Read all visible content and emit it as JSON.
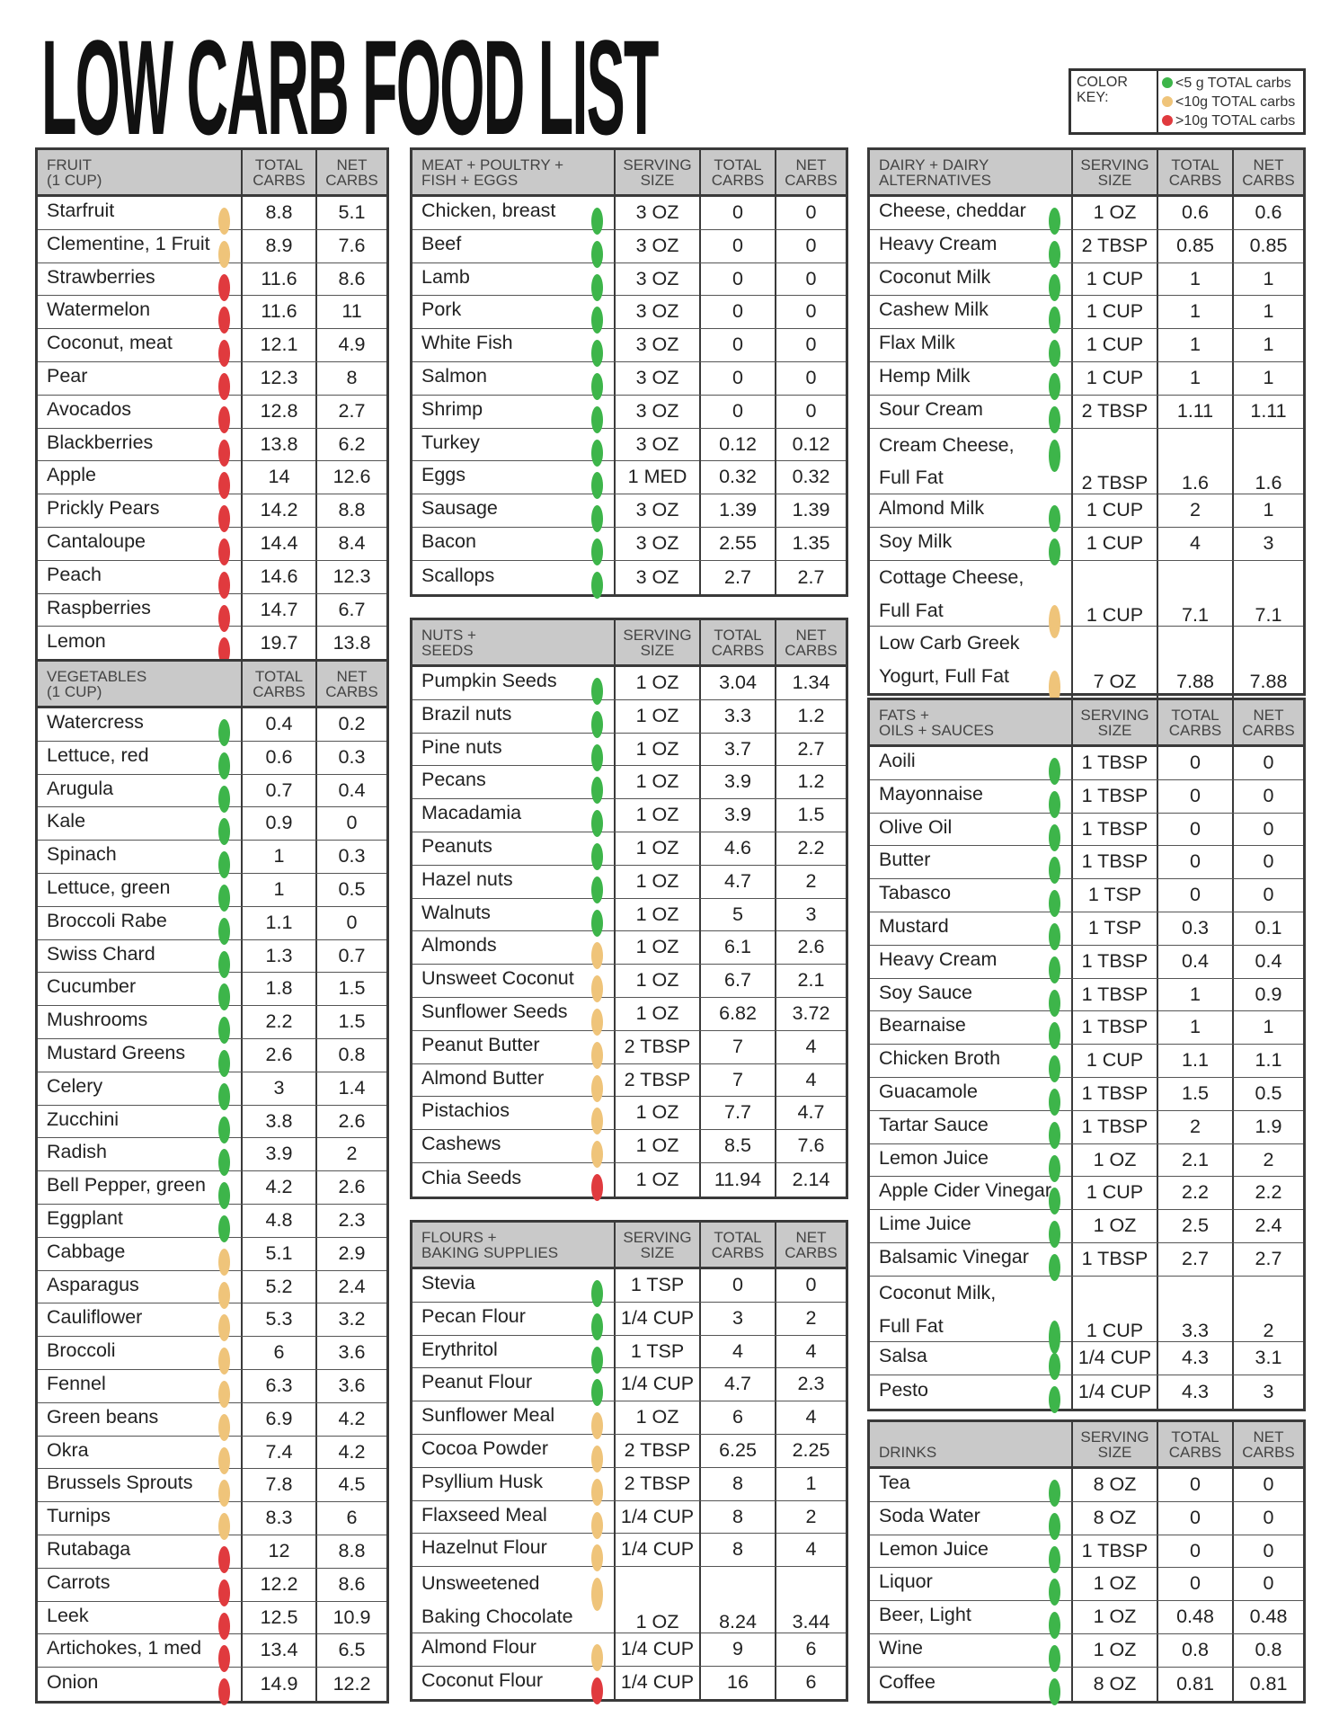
{
  "title": "LOW CARB FOOD LIST",
  "color_key": {
    "label": "COLOR KEY:",
    "items": [
      {
        "text": "<5 g TOTAL carbs",
        "color": "#3db54a"
      },
      {
        "text": "<10g TOTAL carbs",
        "color": "#efc47a"
      },
      {
        "text": ">10g TOTAL carbs",
        "color": "#e03a3e"
      }
    ]
  },
  "dot_colors": {
    "g": "#3db54a",
    "y": "#efc47a",
    "r": "#e03a3e"
  },
  "sections": [
    {
      "id": "fruit",
      "title": [
        "FRUIT",
        "(1 CUP)"
      ],
      "columns": [
        "TOTAL CARBS",
        "NET CARBS"
      ],
      "items": [
        [
          "Starfruit",
          "y",
          "8.8",
          "5.1"
        ],
        [
          "Clementine, 1 Fruit",
          "y",
          "8.9",
          "7.6"
        ],
        [
          "Strawberries",
          "r",
          "11.6",
          "8.6"
        ],
        [
          "Watermelon",
          "r",
          "11.6",
          "11"
        ],
        [
          "Coconut, meat",
          "r",
          "12.1",
          "4.9"
        ],
        [
          "Pear",
          "r",
          "12.3",
          "8"
        ],
        [
          "Avocados",
          "r",
          "12.8",
          "2.7"
        ],
        [
          "Blackberries",
          "r",
          "13.8",
          "6.2"
        ],
        [
          "Apple",
          "r",
          "14",
          "12.6"
        ],
        [
          "Prickly Pears",
          "r",
          "14.2",
          "8.8"
        ],
        [
          "Cantaloupe",
          "r",
          "14.4",
          "8.4"
        ],
        [
          "Peach",
          "r",
          "14.6",
          "12.3"
        ],
        [
          "Raspberries",
          "r",
          "14.7",
          "6.7"
        ],
        [
          "Lemon",
          "r",
          "19.7",
          "13.8"
        ]
      ]
    },
    {
      "id": "vegetables",
      "title": [
        "VEGETABLES",
        "(1 CUP)"
      ],
      "columns": [
        "TOTAL CARBS",
        "NET CARBS"
      ],
      "items": [
        [
          "Watercress",
          "g",
          "0.4",
          "0.2"
        ],
        [
          "Lettuce, red",
          "g",
          "0.6",
          "0.3"
        ],
        [
          "Arugula",
          "g",
          "0.7",
          "0.4"
        ],
        [
          "Kale",
          "g",
          "0.9",
          "0"
        ],
        [
          "Spinach",
          "g",
          "1",
          "0.3"
        ],
        [
          "Lettuce, green",
          "g",
          "1",
          "0.5"
        ],
        [
          "Broccoli Rabe",
          "g",
          "1.1",
          "0"
        ],
        [
          "Swiss Chard",
          "g",
          "1.3",
          "0.7"
        ],
        [
          "Cucumber",
          "g",
          "1.8",
          "1.5"
        ],
        [
          "Mushrooms",
          "g",
          "2.2",
          "1.5"
        ],
        [
          "Mustard Greens",
          "g",
          "2.6",
          "0.8"
        ],
        [
          "Celery",
          "g",
          "3",
          "1.4"
        ],
        [
          "Zucchini",
          "g",
          "3.8",
          "2.6"
        ],
        [
          "Radish",
          "g",
          "3.9",
          "2"
        ],
        [
          "Bell Pepper, green",
          "g",
          "4.2",
          "2.6"
        ],
        [
          "Eggplant",
          "g",
          "4.8",
          "2.3"
        ],
        [
          "Cabbage",
          "y",
          "5.1",
          "2.9"
        ],
        [
          "Asparagus",
          "y",
          "5.2",
          "2.4"
        ],
        [
          "Cauliflower",
          "y",
          "5.3",
          "3.2"
        ],
        [
          "Broccoli",
          "y",
          "6",
          "3.6"
        ],
        [
          "Fennel",
          "y",
          "6.3",
          "3.6"
        ],
        [
          "Green beans",
          "y",
          "6.9",
          "4.2"
        ],
        [
          "Okra",
          "y",
          "7.4",
          "4.2"
        ],
        [
          "Brussels Sprouts",
          "y",
          "7.8",
          "4.5"
        ],
        [
          "Turnips",
          "y",
          "8.3",
          "6"
        ],
        [
          "Rutabaga",
          "r",
          "12",
          "8.8"
        ],
        [
          "Carrots",
          "r",
          "12.2",
          "8.6"
        ],
        [
          "Leek",
          "r",
          "12.5",
          "10.9"
        ],
        [
          "Artichokes, 1 med",
          "r",
          "13.4",
          "6.5"
        ],
        [
          "Onion",
          "r",
          "14.9",
          "12.2"
        ]
      ]
    },
    {
      "id": "meat",
      "title": [
        "MEAT + POULTRY +",
        "FISH + EGGS"
      ],
      "columns": [
        "SERVING SIZE",
        "TOTAL CARBS",
        "NET CARBS"
      ],
      "items": [
        [
          "Chicken, breast",
          "g",
          "3 OZ",
          "0",
          "0"
        ],
        [
          "Beef",
          "g",
          "3 OZ",
          "0",
          "0"
        ],
        [
          "Lamb",
          "g",
          "3 OZ",
          "0",
          "0"
        ],
        [
          "Pork",
          "g",
          "3 OZ",
          "0",
          "0"
        ],
        [
          "White Fish",
          "g",
          "3 OZ",
          "0",
          "0"
        ],
        [
          "Salmon",
          "g",
          "3 OZ",
          "0",
          "0"
        ],
        [
          "Shrimp",
          "g",
          "3 OZ",
          "0",
          "0"
        ],
        [
          "Turkey",
          "g",
          "3 OZ",
          "0.12",
          "0.12"
        ],
        [
          "Eggs",
          "g",
          "1 MED",
          "0.32",
          "0.32"
        ],
        [
          "Sausage",
          "g",
          "3 OZ",
          "1.39",
          "1.39"
        ],
        [
          "Bacon",
          "g",
          "3 OZ",
          "2.55",
          "1.35"
        ],
        [
          "Scallops",
          "g",
          "3 OZ",
          "2.7",
          "2.7"
        ]
      ]
    },
    {
      "id": "nuts",
      "title": [
        "NUTS +",
        "SEEDS"
      ],
      "columns": [
        "SERVING SIZE",
        "TOTAL CARBS",
        "NET CARBS"
      ],
      "items": [
        [
          "Pumpkin Seeds",
          "g",
          "1 OZ",
          "3.04",
          "1.34"
        ],
        [
          "Brazil nuts",
          "g",
          "1 OZ",
          "3.3",
          "1.2"
        ],
        [
          "Pine nuts",
          "g",
          "1 OZ",
          "3.7",
          "2.7"
        ],
        [
          "Pecans",
          "g",
          "1 OZ",
          "3.9",
          "1.2"
        ],
        [
          "Macadamia",
          "g",
          "1 OZ",
          "3.9",
          "1.5"
        ],
        [
          "Peanuts",
          "g",
          "1 OZ",
          "4.6",
          "2.2"
        ],
        [
          "Hazel nuts",
          "g",
          "1 OZ",
          "4.7",
          "2"
        ],
        [
          "Walnuts",
          "g",
          "1 OZ",
          "5",
          "3"
        ],
        [
          "Almonds",
          "y",
          "1 OZ",
          "6.1",
          "2.6"
        ],
        [
          "Unsweet Coconut",
          "y",
          "1 OZ",
          "6.7",
          "2.1"
        ],
        [
          "Sunflower Seeds",
          "y",
          "1 OZ",
          "6.82",
          "3.72"
        ],
        [
          "Peanut Butter",
          "y",
          "2 TBSP",
          "7",
          "4"
        ],
        [
          "Almond Butter",
          "y",
          "2 TBSP",
          "7",
          "4"
        ],
        [
          "Pistachios",
          "y",
          "1 OZ",
          "7.7",
          "4.7"
        ],
        [
          "Cashews",
          "y",
          "1 OZ",
          "8.5",
          "7.6"
        ],
        [
          "Chia Seeds",
          "r",
          "1 OZ",
          "11.94",
          "2.14"
        ]
      ]
    },
    {
      "id": "flours",
      "title": [
        "FLOURS +",
        "BAKING SUPPLIES"
      ],
      "columns": [
        "SERVING SIZE",
        "TOTAL CARBS",
        "NET CARBS"
      ],
      "items": [
        [
          "Stevia",
          "g",
          "1 TSP",
          "0",
          "0"
        ],
        [
          "Pecan Flour",
          "g",
          "1/4 CUP",
          "3",
          "2"
        ],
        [
          "Erythritol",
          "g",
          "1 TSP",
          "4",
          "4"
        ],
        [
          "Peanut Flour",
          "g",
          "1/4 CUP",
          "4.7",
          "2.3"
        ],
        [
          "Sunflower Meal",
          "y",
          "1 OZ",
          "6",
          "4"
        ],
        [
          "Cocoa Powder",
          "y",
          "2 TBSP",
          "6.25",
          "2.25"
        ],
        [
          "Psyllium Husk",
          "y",
          "2 TBSP",
          "8",
          "1"
        ],
        [
          "Flaxseed Meal",
          "y",
          "1/4 CUP",
          "8",
          "2"
        ],
        [
          "Hazelnut Flour",
          "y",
          "1/4 CUP",
          "8",
          "4"
        ],
        [
          [
            "Unsweetened",
            "Baking Chocolate"
          ],
          "y",
          "1 OZ",
          "8.24",
          "3.44"
        ],
        [
          "Almond Flour",
          "y",
          "1/4 CUP",
          "9",
          "6"
        ],
        [
          "Coconut Flour",
          "r",
          "1/4 CUP",
          "16",
          "6"
        ]
      ]
    },
    {
      "id": "dairy",
      "title": [
        "DAIRY + DAIRY",
        "ALTERNATIVES"
      ],
      "columns": [
        "SERVING SIZE",
        "TOTAL CARBS",
        "NET CARBS"
      ],
      "items": [
        [
          "Cheese, cheddar",
          "g",
          "1 OZ",
          "0.6",
          "0.6"
        ],
        [
          "Heavy Cream",
          "g",
          "2 TBSP",
          "0.85",
          "0.85"
        ],
        [
          "Coconut Milk",
          "g",
          "1 CUP",
          "1",
          "1"
        ],
        [
          "Cashew Milk",
          "g",
          "1 CUP",
          "1",
          "1"
        ],
        [
          "Flax Milk",
          "g",
          "1 CUP",
          "1",
          "1"
        ],
        [
          "Hemp Milk",
          "g",
          "1 CUP",
          "1",
          "1"
        ],
        [
          "Sour Cream",
          "g",
          "2 TBSP",
          "1.11",
          "1.11"
        ],
        [
          [
            "Cream Cheese,",
            "Full Fat"
          ],
          "g",
          "2 TBSP",
          "1.6",
          "1.6"
        ],
        [
          "Almond Milk",
          "g",
          "1 CUP",
          "2",
          "1"
        ],
        [
          "Soy Milk",
          "g",
          "1 CUP",
          "4",
          "3"
        ],
        [
          [
            "Cottage Cheese,",
            "Full Fat"
          ],
          "y2",
          "1 CUP",
          "7.1",
          "7.1"
        ],
        [
          [
            "Low Carb Greek",
            "Yogurt, Full Fat"
          ],
          "y2",
          "7 OZ",
          "7.88",
          "7.88"
        ]
      ]
    },
    {
      "id": "fats",
      "title": [
        "FATS +",
        "OILS + SAUCES"
      ],
      "columns": [
        "SERVING SIZE",
        "TOTAL CARBS",
        "NET CARBS"
      ],
      "items": [
        [
          "Aoili",
          "g",
          "1 TBSP",
          "0",
          "0"
        ],
        [
          "Mayonnaise",
          "g",
          "1 TBSP",
          "0",
          "0"
        ],
        [
          "Olive Oil",
          "g",
          "1 TBSP",
          "0",
          "0"
        ],
        [
          "Butter",
          "g",
          "1 TBSP",
          "0",
          "0"
        ],
        [
          "Tabasco",
          "g",
          "1 TSP",
          "0",
          "0"
        ],
        [
          "Mustard",
          "g",
          "1 TSP",
          "0.3",
          "0.1"
        ],
        [
          "Heavy Cream",
          "g",
          "1 TBSP",
          "0.4",
          "0.4"
        ],
        [
          "Soy Sauce",
          "g",
          "1 TBSP",
          "1",
          "0.9"
        ],
        [
          "Bearnaise",
          "g",
          "1 TBSP",
          "1",
          "1"
        ],
        [
          "Chicken Broth",
          "g",
          "1 CUP",
          "1.1",
          "1.1"
        ],
        [
          "Guacamole",
          "g",
          "1 TBSP",
          "1.5",
          "0.5"
        ],
        [
          "Tartar Sauce",
          "g",
          "1 TBSP",
          "2",
          "1.9"
        ],
        [
          "Lemon Juice",
          "g",
          "1 OZ",
          "2.1",
          "2"
        ],
        [
          "Apple Cider Vinegar",
          "g",
          "1 CUP",
          "2.2",
          "2.2"
        ],
        [
          "Lime Juice",
          "g",
          "1 OZ",
          "2.5",
          "2.4"
        ],
        [
          "Balsamic Vinegar",
          "g",
          "1 TBSP",
          "2.7",
          "2.7"
        ],
        [
          [
            "Coconut Milk,",
            "Full Fat"
          ],
          "g2",
          "1 CUP",
          "3.3",
          "2"
        ],
        [
          "Salsa",
          "g",
          "1/4 CUP",
          "4.3",
          "3.1"
        ],
        [
          "Pesto",
          "g",
          "1/4 CUP",
          "4.3",
          "3"
        ]
      ]
    },
    {
      "id": "drinks",
      "title": [
        "",
        "DRINKS"
      ],
      "columns": [
        "SERVING SIZE",
        "TOTAL CARBS",
        "NET CARBS"
      ],
      "items": [
        [
          "Tea",
          "g",
          "8 OZ",
          "0",
          "0"
        ],
        [
          "Soda Water",
          "g",
          "8 OZ",
          "0",
          "0"
        ],
        [
          "Lemon Juice",
          "g",
          "1 TBSP",
          "0",
          "0"
        ],
        [
          "Liquor",
          "g",
          "1 OZ",
          "0",
          "0"
        ],
        [
          "Beer, Light",
          "g",
          "1 OZ",
          "0.48",
          "0.48"
        ],
        [
          "Wine",
          "g",
          "1 OZ",
          "0.8",
          "0.8"
        ],
        [
          "Coffee",
          "g",
          "8 OZ",
          "0.81",
          "0.81"
        ]
      ]
    }
  ]
}
